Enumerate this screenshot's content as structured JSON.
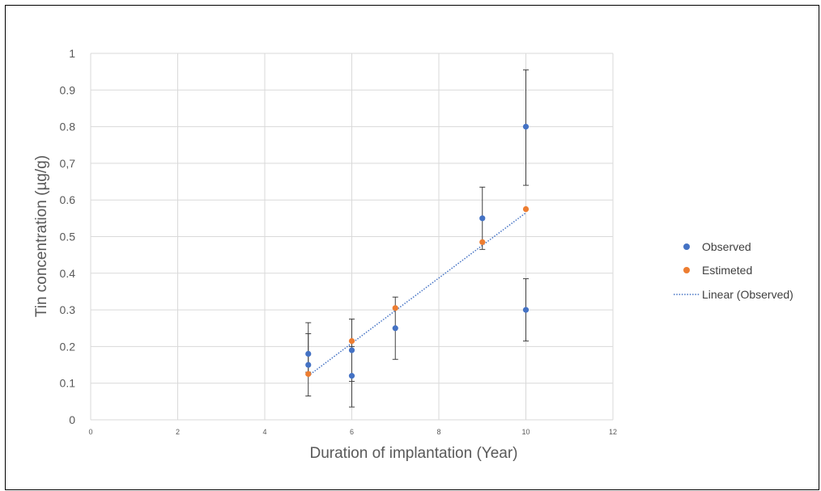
{
  "chart_data": {
    "type": "scatter",
    "title": "",
    "xlabel": "Duration of implantation (Year)",
    "ylabel": "Tin concentration (µg/g)",
    "xlim": [
      0,
      12
    ],
    "ylim": [
      0,
      1
    ],
    "x_ticks": [
      "0",
      "2",
      "4",
      "6",
      "8",
      "10",
      "12"
    ],
    "y_ticks": [
      "0",
      "0.1",
      "0.2",
      "0.3",
      "0.4",
      "0.5",
      "0.6",
      "0,7",
      "0.8",
      "0.9",
      "1"
    ],
    "grid": true,
    "legend_position": "right",
    "series": [
      {
        "name": "Observed",
        "color": "#4472C4",
        "points": [
          {
            "x": 5,
            "y": 0.18,
            "err_lo": 0.13,
            "err_hi": 0.265
          },
          {
            "x": 5,
            "y": 0.15,
            "err_lo": 0.065,
            "err_hi": 0.235
          },
          {
            "x": 6,
            "y": 0.19,
            "err_lo": 0.105,
            "err_hi": 0.275
          },
          {
            "x": 6,
            "y": 0.12,
            "err_lo": 0.035,
            "err_hi": 0.2
          },
          {
            "x": 7,
            "y": 0.25,
            "err_lo": 0.165,
            "err_hi": 0.335
          },
          {
            "x": 9,
            "y": 0.55,
            "err_lo": 0.465,
            "err_hi": 0.635
          },
          {
            "x": 10,
            "y": 0.8,
            "err_lo": 0.64,
            "err_hi": 0.955
          },
          {
            "x": 10,
            "y": 0.3,
            "err_lo": 0.215,
            "err_hi": 0.385
          }
        ]
      },
      {
        "name": "Estimeted",
        "color": "#ED7D31",
        "points": [
          {
            "x": 5,
            "y": 0.125
          },
          {
            "x": 6,
            "y": 0.215
          },
          {
            "x": 7,
            "y": 0.305
          },
          {
            "x": 9,
            "y": 0.485
          },
          {
            "x": 10,
            "y": 0.575
          }
        ]
      }
    ],
    "trendline": {
      "name": "Linear (Observed)",
      "color": "#4472C4",
      "x": [
        5,
        10
      ],
      "y": [
        0.12,
        0.565
      ]
    }
  }
}
